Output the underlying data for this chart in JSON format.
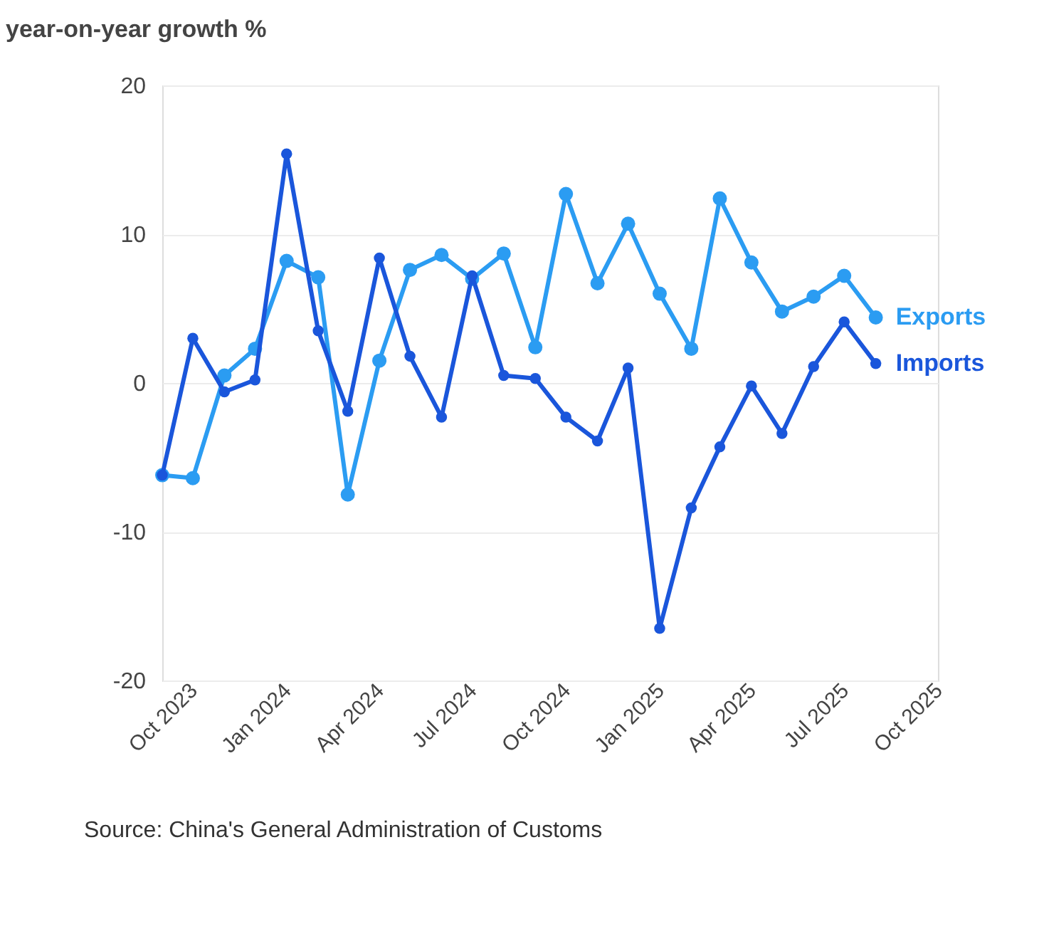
{
  "chart_data": {
    "type": "line",
    "title": "year-on-year growth %",
    "x": [
      "2023-09",
      "2023-10",
      "2023-11",
      "2023-12",
      "2024-01",
      "2024-02",
      "2024-03",
      "2024-04",
      "2024-05",
      "2024-06",
      "2024-07",
      "2024-08",
      "2024-09",
      "2024-10",
      "2024-11",
      "2024-12",
      "2025-01",
      "2025-02",
      "2025-03",
      "2025-04",
      "2025-05",
      "2025-06",
      "2025-07",
      "2025-08"
    ],
    "series": [
      {
        "name": "Exports",
        "color": "#2b9cf2",
        "values": [
          -6.2,
          -6.4,
          0.5,
          2.3,
          8.2,
          7.1,
          -7.5,
          1.5,
          7.6,
          8.6,
          7.0,
          8.7,
          2.4,
          12.7,
          6.7,
          10.7,
          6.0,
          2.3,
          12.4,
          8.1,
          4.8,
          5.8,
          7.2,
          4.4
        ]
      },
      {
        "name": "Imports",
        "color": "#1a56db",
        "values": [
          -6.2,
          3.0,
          -0.6,
          0.2,
          15.4,
          3.5,
          -1.9,
          8.4,
          1.8,
          -2.3,
          7.2,
          0.5,
          0.3,
          -2.3,
          -3.9,
          1.0,
          -16.5,
          -8.4,
          -4.3,
          -0.2,
          -3.4,
          1.1,
          4.1,
          1.3
        ]
      }
    ],
    "xlim": [
      "2023-09",
      "2025-10"
    ],
    "xticks": [
      {
        "value": "2023-10",
        "label": "Oct 2023"
      },
      {
        "value": "2024-01",
        "label": "Jan 2024"
      },
      {
        "value": "2024-04",
        "label": "Apr 2024"
      },
      {
        "value": "2024-07",
        "label": "Jul 2024"
      },
      {
        "value": "2024-10",
        "label": "Oct 2024"
      },
      {
        "value": "2025-01",
        "label": "Jan 2025"
      },
      {
        "value": "2025-04",
        "label": "Apr 2025"
      },
      {
        "value": "2025-07",
        "label": "Jul 2025"
      },
      {
        "value": "2025-10",
        "label": "Oct 2025"
      }
    ],
    "ylim": [
      -20,
      20
    ],
    "yticks": [
      -20,
      -10,
      0,
      10,
      20
    ],
    "grid": "y",
    "legend": false,
    "marker": "circle",
    "line_style": "solid",
    "annotations": [
      "Source: China's General Administration of Customs"
    ]
  }
}
